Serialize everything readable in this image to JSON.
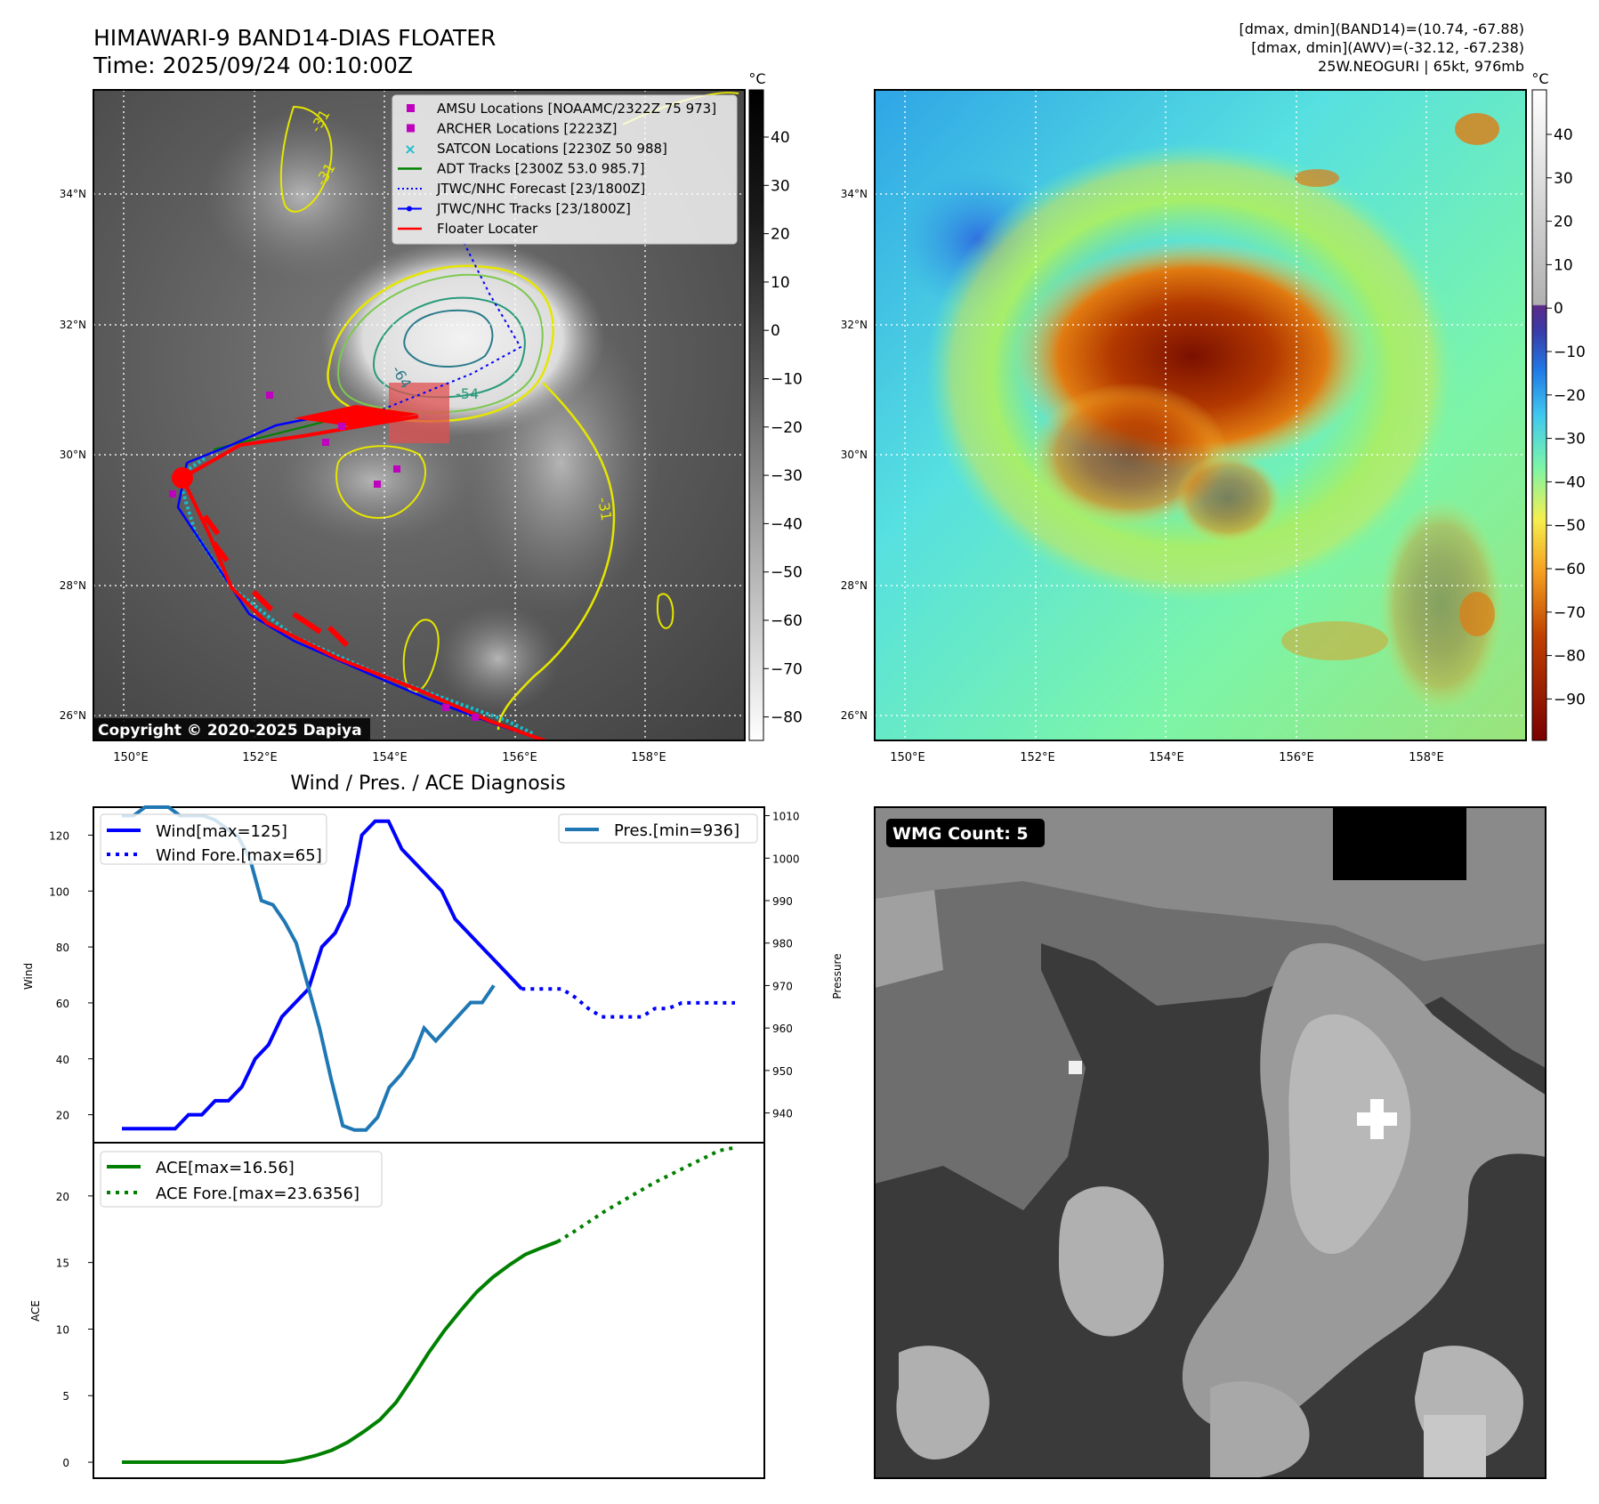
{
  "header": {
    "title_line1": "HIMAWARI-9 BAND14-DIAS FLOATER",
    "title_line2": "Time: 2025/09/24 00:10:00Z",
    "info_line1": "[dmax, dmin](BAND14)=(10.74, -67.88)",
    "info_line2": "[dmax, dmin](AWV)=(-32.12, -67.238)",
    "info_line3": "25W.NEOGURI | 65kt, 976mb"
  },
  "maps": {
    "lat_labels": [
      "34°N",
      "32°N",
      "30°N",
      "28°N",
      "26°N"
    ],
    "lon_labels": [
      "150°E",
      "152°E",
      "154°E",
      "156°E",
      "158°E"
    ],
    "copyright": "Copyright © 2020-2025 Dapiya",
    "contour_labels": [
      "-64",
      "-54",
      "-31",
      "-31",
      "-31"
    ],
    "legend": [
      {
        "label": "AMSU Locations [NOAAMC/2322Z 75 973]",
        "marker": "square",
        "color": "#bf00bf"
      },
      {
        "label": "ARCHER Locations [2223Z]",
        "marker": "square",
        "color": "#bf00bf"
      },
      {
        "label": "SATCON Locations [2230Z 50 988]",
        "marker": "x",
        "color": "#17becf"
      },
      {
        "label": "ADT Tracks [2300Z 53.0 985.7]",
        "marker": "line",
        "color": "#008000"
      },
      {
        "label": "JTWC/NHC Forecast [23/1800Z]",
        "marker": "dotted",
        "color": "#0000ff"
      },
      {
        "label": "JTWC/NHC Tracks [23/1800Z]",
        "marker": "dotline",
        "color": "#0000ff"
      },
      {
        "label": "Floater Locater",
        "marker": "line",
        "color": "#ff0000"
      }
    ],
    "gray_colorbar": {
      "unit": "°C",
      "ticks": [
        "40",
        "30",
        "20",
        "10",
        "0",
        "−10",
        "−20",
        "−30",
        "−40",
        "−50",
        "−60",
        "−70",
        "−80"
      ]
    },
    "color_colorbar": {
      "unit": "°C",
      "ticks": [
        "40",
        "30",
        "20",
        "10",
        "0",
        "−10",
        "−20",
        "−30",
        "−40",
        "−50",
        "−60",
        "−70",
        "−80",
        "−90"
      ]
    }
  },
  "diag": {
    "title": "Wind / Pres. / ACE Diagnosis",
    "wind_ylabel": "Wind",
    "pres_ylabel": "Pressure",
    "ace_ylabel": "ACE",
    "wind_ticks": [
      "120",
      "100",
      "80",
      "60",
      "40",
      "20"
    ],
    "pres_ticks": [
      "1010",
      "1000",
      "990",
      "980",
      "970",
      "960",
      "950",
      "940"
    ],
    "ace_ticks": [
      "20",
      "15",
      "10",
      "5",
      "0"
    ],
    "legend_wind": "Wind[max=125]",
    "legend_wind_fore": "Wind Fore.[max=65]",
    "legend_pres": "Pres.[min=936]",
    "legend_ace": "ACE[max=16.56]",
    "legend_ace_fore": "ACE Fore.[max=23.6356]"
  },
  "wmg": {
    "label": "WMG Count: 5"
  },
  "chart_data": [
    {
      "type": "line",
      "title": "Wind / Pres. / ACE Diagnosis",
      "ylabel": "Wind",
      "ylim": [
        10,
        130
      ],
      "series": [
        {
          "name": "Wind[max=125]",
          "color": "#0000ff",
          "values": [
            15,
            15,
            15,
            15,
            15,
            20,
            20,
            25,
            25,
            30,
            40,
            45,
            55,
            60,
            65,
            80,
            85,
            95,
            120,
            125,
            125,
            115,
            110,
            105,
            100,
            90,
            85,
            80,
            75,
            70,
            65
          ]
        },
        {
          "name": "Wind Fore.[max=65]",
          "color": "#0000ff",
          "style": "dotted",
          "values": [
            65,
            65,
            65,
            65,
            62,
            58,
            55,
            55,
            55,
            55,
            58,
            58,
            60,
            60,
            60,
            60,
            60
          ]
        }
      ]
    },
    {
      "type": "line",
      "ylabel": "Pressure",
      "ylim": [
        933,
        1012
      ],
      "series": [
        {
          "name": "Pres.[min=936]",
          "color": "#1f77b4",
          "values": [
            1010,
            1010,
            1012,
            1012,
            1012,
            1010,
            1010,
            1010,
            1009,
            1007,
            1005,
            1000,
            990,
            989,
            985,
            980,
            970,
            960,
            948,
            937,
            936,
            936,
            939,
            946,
            949,
            953,
            960,
            957,
            960,
            963,
            966,
            966,
            970
          ]
        }
      ]
    },
    {
      "type": "line",
      "ylabel": "ACE",
      "ylim": [
        -1.2,
        24
      ],
      "series": [
        {
          "name": "ACE[max=16.56]",
          "color": "#008000",
          "values": [
            0,
            0,
            0,
            0,
            0,
            0,
            0,
            0,
            0,
            0,
            0,
            0.2,
            0.5,
            0.9,
            1.5,
            2.3,
            3.2,
            4.5,
            6.3,
            8.2,
            9.9,
            11.4,
            12.8,
            13.9,
            14.8,
            15.6,
            16.1,
            16.56
          ]
        },
        {
          "name": "ACE Fore.[max=23.6356]",
          "color": "#008000",
          "style": "dotted",
          "values": [
            16.56,
            17.3,
            18.1,
            18.9,
            19.6,
            20.3,
            21.0,
            21.6,
            22.2,
            22.8,
            23.4,
            23.6356
          ]
        }
      ]
    }
  ]
}
